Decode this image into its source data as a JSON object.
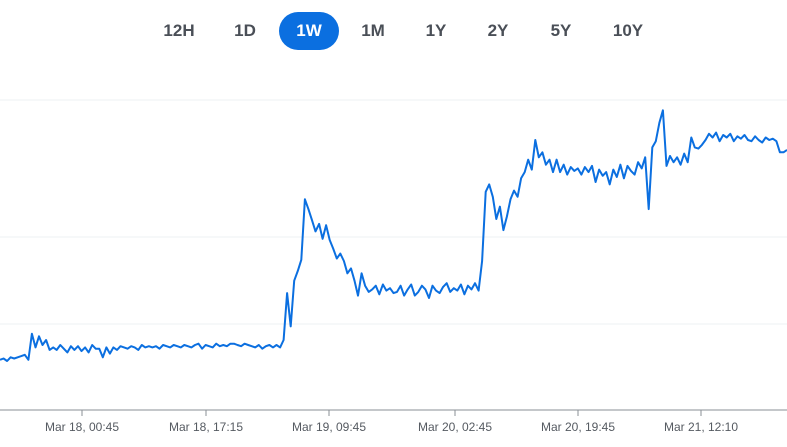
{
  "range_selector": {
    "options": [
      "12H",
      "1D",
      "1W",
      "1M",
      "1Y",
      "2Y",
      "5Y",
      "10Y"
    ],
    "selected": "1W",
    "accent_color": "#0b6fe0"
  },
  "chart_data": {
    "type": "line",
    "title": "",
    "xlabel": "",
    "ylabel": "",
    "x_tick_labels": [
      "Mar 18, 00:45",
      "Mar 18, 17:15",
      "Mar 19, 09:45",
      "Mar 20, 02:45",
      "Mar 20, 19:45",
      "Mar 21, 12:10"
    ],
    "grid": "horizontal",
    "line_color": "#0b6fe0",
    "series": [
      {
        "values": [
          18,
          19,
          17,
          20,
          19,
          20,
          21,
          22,
          18,
          39,
          28,
          37,
          30,
          34,
          26,
          28,
          26,
          30,
          27,
          24,
          29,
          26,
          29,
          25,
          28,
          24,
          30,
          27,
          27,
          20,
          28,
          23,
          28,
          26,
          29,
          28,
          27,
          29,
          28,
          26,
          30,
          28,
          29,
          28,
          29,
          27,
          30,
          29,
          28,
          30,
          29,
          28,
          30,
          29,
          28,
          30,
          31,
          27,
          30,
          29,
          28,
          31,
          29,
          30,
          29,
          31,
          31,
          30,
          29,
          31,
          30,
          29,
          28,
          30,
          27,
          29,
          30,
          28,
          30,
          28,
          34,
          72,
          45,
          82,
          90,
          99,
          148,
          140,
          131,
          122,
          128,
          116,
          127,
          115,
          108,
          100,
          104,
          98,
          88,
          92,
          82,
          70,
          88,
          78,
          73,
          75,
          78,
          71,
          79,
          74,
          76,
          72,
          73,
          78,
          70,
          75,
          79,
          70,
          73,
          78,
          75,
          68,
          78,
          74,
          72,
          77,
          80,
          73,
          76,
          74,
          79,
          71,
          78,
          75,
          80,
          74,
          98,
          154,
          160,
          150,
          132,
          142,
          123,
          134,
          148,
          155,
          150,
          165,
          170,
          180,
          172,
          196,
          182,
          186,
          176,
          180,
          170,
          180,
          170,
          176,
          168,
          174,
          171,
          173,
          168,
          174,
          170,
          175,
          162,
          172,
          167,
          170,
          160,
          172,
          166,
          176,
          165,
          175,
          171,
          168,
          178,
          173,
          182,
          140,
          190,
          195,
          210,
          220,
          175,
          183,
          178,
          182,
          176,
          185,
          178,
          198,
          190,
          189,
          192,
          196,
          201,
          198,
          202,
          195,
          200,
          198,
          201,
          195,
          199,
          197,
          200,
          196,
          195,
          199,
          196,
          194,
          198,
          196,
          197,
          195,
          186,
          186,
          188
        ]
      }
    ]
  }
}
